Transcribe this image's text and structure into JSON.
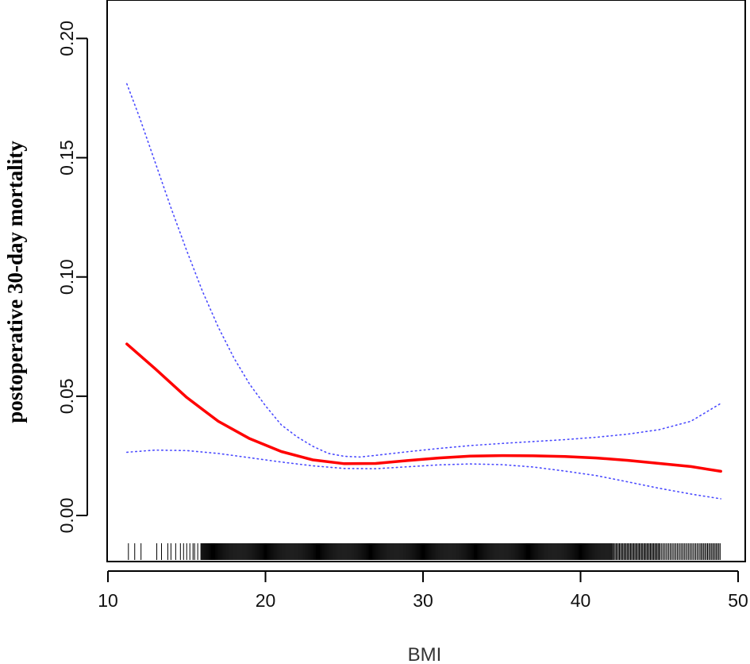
{
  "chart_data": {
    "type": "line",
    "title": "",
    "xlabel": "BMI",
    "ylabel": "postoperative 30-day mortality",
    "xlim": [
      10,
      50
    ],
    "ylim": [
      0,
      0.2
    ],
    "x_ticks": [
      10,
      20,
      30,
      40,
      50
    ],
    "y_ticks": [
      "0.00",
      "0.05",
      "0.10",
      "0.15",
      "0.20"
    ],
    "grid": false,
    "legend": "none",
    "series": [
      {
        "role": "estimate",
        "color": "#ff0000",
        "style": "solid",
        "x": [
          11.2,
          13,
          15,
          17,
          19,
          21,
          23,
          25,
          27,
          29,
          31,
          33,
          35,
          37,
          39,
          41,
          43,
          45,
          47,
          48.9
        ],
        "values": [
          0.0719,
          0.0615,
          0.0495,
          0.0395,
          0.0322,
          0.0268,
          0.0233,
          0.0217,
          0.0218,
          0.023,
          0.0241,
          0.0249,
          0.0251,
          0.025,
          0.0247,
          0.0241,
          0.0231,
          0.0218,
          0.0205,
          0.0185
        ]
      },
      {
        "role": "upper-ci",
        "color": "#4b4bff",
        "style": "dotted",
        "x": [
          11.2,
          12,
          13,
          14,
          15,
          16,
          17,
          18,
          19,
          20,
          21,
          22,
          23,
          24,
          25,
          26,
          27,
          29,
          31,
          33,
          35,
          37,
          39,
          41,
          43,
          45,
          47,
          48.9
        ],
        "values": [
          0.181,
          0.167,
          0.148,
          0.129,
          0.111,
          0.094,
          0.079,
          0.066,
          0.055,
          0.046,
          0.038,
          0.033,
          0.029,
          0.026,
          0.0248,
          0.0245,
          0.0252,
          0.0267,
          0.0281,
          0.0293,
          0.0302,
          0.031,
          0.0318,
          0.0328,
          0.0341,
          0.036,
          0.0395,
          0.047
        ]
      },
      {
        "role": "lower-ci",
        "color": "#4b4bff",
        "style": "dotted",
        "x": [
          11.2,
          13,
          15,
          17,
          19,
          21,
          23,
          25,
          27,
          29,
          31,
          33,
          35,
          37,
          39,
          41,
          43,
          45,
          47,
          48.9
        ],
        "values": [
          0.0265,
          0.0274,
          0.0272,
          0.026,
          0.0242,
          0.0224,
          0.0208,
          0.0197,
          0.0196,
          0.0204,
          0.0212,
          0.0216,
          0.0213,
          0.0203,
          0.0186,
          0.0167,
          0.0141,
          0.0114,
          0.009,
          0.007
        ]
      }
    ],
    "rug": {
      "x_min": 11.3,
      "x_max": 48.9,
      "values": [
        11.3,
        11.7,
        12.1,
        13.1,
        13.4,
        13.8,
        14.0,
        14.3,
        14.6,
        14.8,
        15.0,
        15.2,
        15.4,
        15.5,
        15.7,
        15.9
      ]
    }
  }
}
